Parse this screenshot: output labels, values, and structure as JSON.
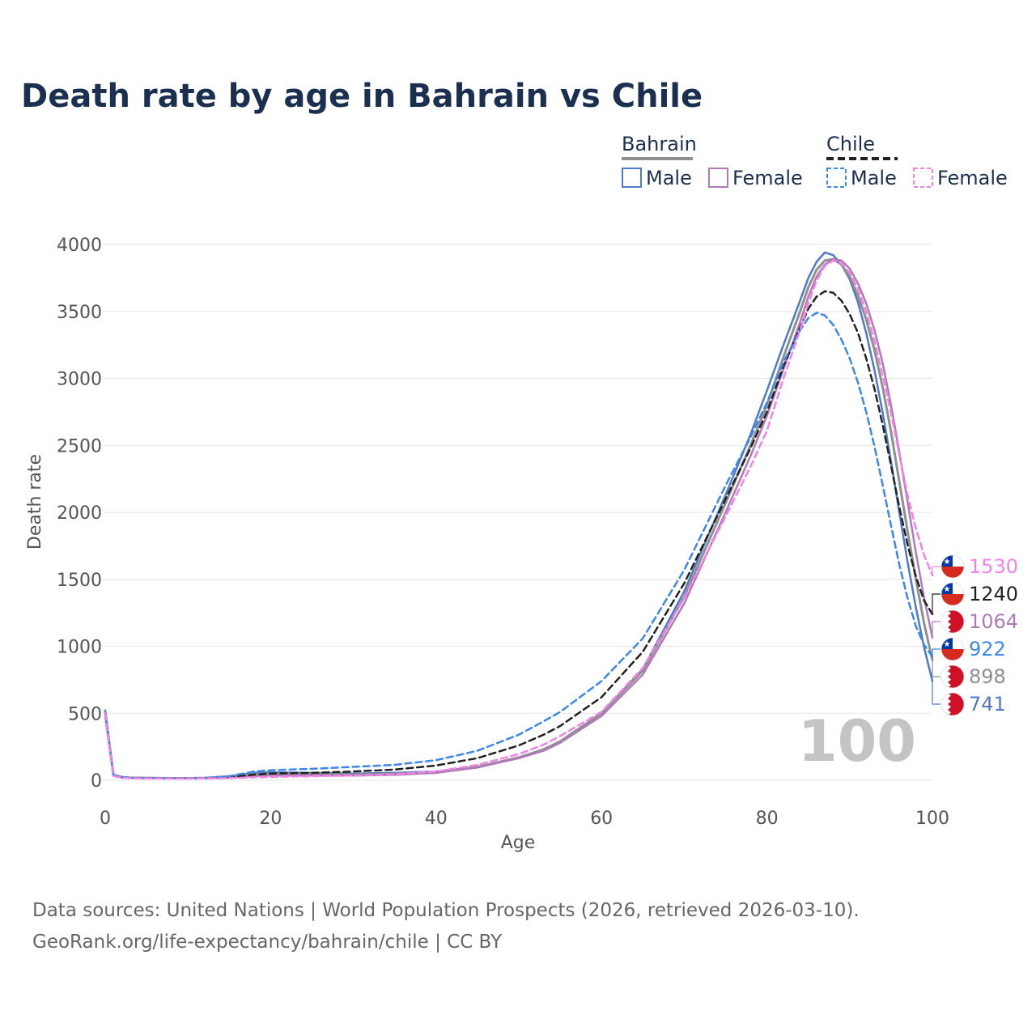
{
  "chart_data": {
    "type": "line",
    "title": "Death rate by age in Bahrain vs Chile",
    "xlabel": "Age",
    "ylabel": "Death rate",
    "xlim": [
      0,
      100
    ],
    "ylim": [
      0,
      4000
    ],
    "xticks": [
      0,
      20,
      40,
      60,
      80,
      100
    ],
    "yticks": [
      0,
      500,
      1000,
      1500,
      2000,
      2500,
      3000,
      3500,
      4000
    ],
    "watermark": "100",
    "legend": {
      "groups": [
        {
          "name": "Bahrain",
          "entries": [
            {
              "label": "Male",
              "color": "#4e7ac7",
              "dashed": false
            },
            {
              "label": "Female",
              "color": "#b07ab8",
              "dashed": false
            }
          ]
        },
        {
          "name": "Chile",
          "entries": [
            {
              "label": "Male",
              "color": "#3d87e8",
              "dashed": true
            },
            {
              "label": "Female",
              "color": "#f382e8",
              "dashed": true
            }
          ]
        }
      ]
    },
    "series": [
      {
        "name": "Bahrain Male",
        "color": "#4e7ac7",
        "dashed": false,
        "width": 2.5,
        "x": [
          0,
          1,
          2,
          3,
          5,
          8,
          10,
          12,
          15,
          18,
          20,
          25,
          30,
          35,
          40,
          45,
          50,
          53,
          55,
          60,
          65,
          70,
          75,
          78,
          80,
          82,
          84,
          85,
          86,
          87,
          88,
          89,
          90,
          91,
          92,
          93,
          94,
          95,
          96,
          97,
          98,
          99,
          100
        ],
        "y": [
          520,
          40,
          25,
          20,
          18,
          16,
          16,
          18,
          30,
          55,
          60,
          55,
          50,
          55,
          65,
          100,
          165,
          230,
          290,
          500,
          830,
          1410,
          2130,
          2580,
          2910,
          3250,
          3580,
          3750,
          3870,
          3940,
          3920,
          3850,
          3740,
          3570,
          3340,
          3060,
          2740,
          2380,
          2000,
          1630,
          1290,
          990,
          741
        ],
        "end_value": "741",
        "end_flag": "bahrain"
      },
      {
        "name": "Bahrain",
        "color": "#8f8f8f",
        "dashed": false,
        "width": 3,
        "x": [
          0,
          1,
          2,
          3,
          5,
          8,
          10,
          12,
          15,
          18,
          20,
          25,
          30,
          35,
          40,
          45,
          50,
          53,
          55,
          60,
          65,
          70,
          75,
          78,
          80,
          82,
          84,
          85,
          86,
          87,
          88,
          89,
          90,
          91,
          92,
          93,
          94,
          95,
          96,
          97,
          98,
          99,
          100
        ],
        "y": [
          500,
          38,
          23,
          19,
          17,
          15,
          15,
          17,
          26,
          45,
          48,
          45,
          42,
          48,
          60,
          100,
          170,
          230,
          290,
          500,
          820,
          1370,
          2070,
          2500,
          2800,
          3160,
          3500,
          3680,
          3810,
          3880,
          3890,
          3850,
          3760,
          3620,
          3440,
          3210,
          2930,
          2600,
          2230,
          1860,
          1500,
          1170,
          898
        ],
        "end_value": "898",
        "end_flag": "bahrain"
      },
      {
        "name": "Bahrain Female",
        "color": "#b07ab8",
        "dashed": false,
        "width": 2.5,
        "x": [
          0,
          1,
          2,
          3,
          5,
          8,
          10,
          12,
          15,
          18,
          20,
          25,
          30,
          35,
          40,
          45,
          50,
          53,
          55,
          60,
          65,
          70,
          75,
          78,
          80,
          82,
          84,
          85,
          86,
          87,
          88,
          89,
          90,
          91,
          92,
          93,
          94,
          95,
          96,
          97,
          98,
          99,
          100
        ],
        "y": [
          480,
          35,
          21,
          18,
          15,
          14,
          14,
          15,
          20,
          32,
          35,
          35,
          35,
          40,
          55,
          95,
          165,
          220,
          280,
          480,
          790,
          1320,
          2000,
          2420,
          2720,
          3070,
          3420,
          3610,
          3760,
          3850,
          3890,
          3880,
          3820,
          3710,
          3560,
          3360,
          3110,
          2800,
          2450,
          2080,
          1700,
          1360,
          1064
        ],
        "end_value": "1064",
        "end_flag": "bahrain"
      },
      {
        "name": "Chile",
        "color": "#222222",
        "dashed": true,
        "width": 2.5,
        "x": [
          0,
          1,
          2,
          3,
          5,
          8,
          10,
          12,
          15,
          18,
          20,
          25,
          30,
          35,
          40,
          45,
          50,
          53,
          55,
          60,
          65,
          70,
          75,
          78,
          80,
          82,
          84,
          85,
          86,
          87,
          88,
          89,
          90,
          91,
          92,
          93,
          94,
          95,
          96,
          97,
          98,
          99,
          100
        ],
        "y": [
          510,
          35,
          20,
          17,
          15,
          13,
          13,
          14,
          22,
          42,
          50,
          55,
          65,
          80,
          110,
          165,
          260,
          340,
          405,
          620,
          960,
          1470,
          2100,
          2480,
          2750,
          3090,
          3380,
          3520,
          3610,
          3650,
          3640,
          3580,
          3480,
          3340,
          3150,
          2920,
          2650,
          2350,
          2040,
          1760,
          1520,
          1340,
          1240
        ],
        "end_value": "1240",
        "end_flag": "chile"
      },
      {
        "name": "Chile Male",
        "color": "#3d87e8",
        "dashed": true,
        "width": 2.5,
        "x": [
          0,
          1,
          2,
          3,
          5,
          8,
          10,
          12,
          15,
          18,
          20,
          25,
          30,
          35,
          40,
          45,
          50,
          53,
          55,
          60,
          65,
          70,
          75,
          78,
          80,
          82,
          84,
          85,
          86,
          87,
          88,
          89,
          90,
          91,
          92,
          93,
          94,
          95,
          96,
          97,
          98,
          99,
          100
        ],
        "y": [
          520,
          38,
          22,
          18,
          16,
          14,
          14,
          15,
          30,
          65,
          75,
          85,
          100,
          115,
          150,
          220,
          340,
          440,
          510,
          740,
          1060,
          1570,
          2200,
          2560,
          2820,
          3120,
          3360,
          3450,
          3490,
          3470,
          3400,
          3290,
          3150,
          2970,
          2750,
          2490,
          2200,
          1900,
          1610,
          1360,
          1150,
          1010,
          922
        ],
        "end_value": "922",
        "end_flag": "chile"
      },
      {
        "name": "Chile Female",
        "color": "#f382e8",
        "dashed": true,
        "width": 2.5,
        "x": [
          0,
          1,
          2,
          3,
          5,
          8,
          10,
          12,
          15,
          18,
          20,
          25,
          30,
          35,
          40,
          45,
          50,
          53,
          55,
          60,
          65,
          70,
          75,
          78,
          80,
          82,
          84,
          85,
          86,
          87,
          88,
          89,
          90,
          91,
          92,
          93,
          94,
          95,
          96,
          97,
          98,
          99,
          100
        ],
        "y": [
          500,
          32,
          18,
          15,
          13,
          12,
          12,
          13,
          16,
          22,
          25,
          30,
          35,
          45,
          65,
          115,
          195,
          265,
          330,
          510,
          840,
          1360,
          1970,
          2340,
          2610,
          3000,
          3360,
          3560,
          3730,
          3840,
          3880,
          3860,
          3790,
          3670,
          3500,
          3280,
          3020,
          2740,
          2430,
          2130,
          1880,
          1680,
          1530
        ],
        "end_value": "1530",
        "end_flag": "chile"
      }
    ]
  },
  "footer": {
    "line1": "Data sources: United Nations | World Population Prospects (2026, retrieved 2026-03-10).",
    "line2": "GeoRank.org/life-expectancy/bahrain/chile | CC BY"
  }
}
